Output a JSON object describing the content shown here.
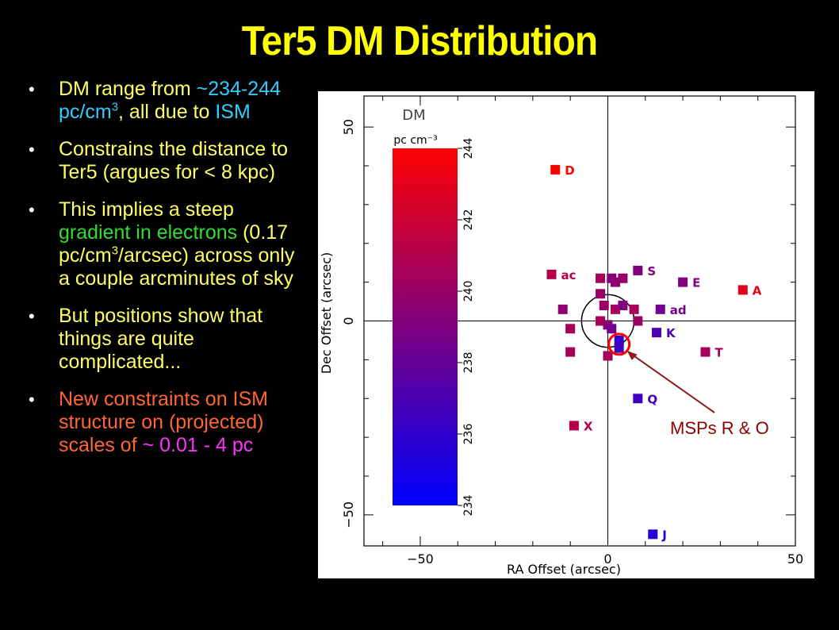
{
  "slide": {
    "title": "Ter5 DM Distribution",
    "bullets": [
      {
        "parts": [
          {
            "t": "DM range from "
          },
          {
            "t": "~234-244",
            "c": "cyan"
          },
          {
            "t": " pc/cm",
            "c": "cyan"
          },
          {
            "sup": "3",
            "c": "cyan"
          },
          {
            "t": ", all due to "
          },
          {
            "t": "ISM",
            "c": "cyan"
          }
        ]
      },
      {
        "parts": [
          {
            "t": "Constrains the distance to Ter5 (argues for < 8 kpc)"
          }
        ]
      },
      {
        "parts": [
          {
            "t": "This implies a steep "
          },
          {
            "t": "gradient in electrons",
            "c": "green"
          },
          {
            "t": " (0.17 pc/cm"
          },
          {
            "sup": "3"
          },
          {
            "t": "/arcsec) across only a couple arcminutes of sky"
          }
        ]
      },
      {
        "parts": [
          {
            "t": "But positions show that things are quite complicated..."
          }
        ]
      },
      {
        "parts": [
          {
            "t": "New constraints on ISM structure on (projected) scales of ",
            "c": "orange"
          },
          {
            "t": "~ 0.01 - 4 pc",
            "c": "magenta"
          }
        ]
      }
    ],
    "annotation": "MSPs R & O"
  },
  "chart_data": {
    "type": "scatter",
    "xlabel": "RA Offset (arcsec)",
    "ylabel": "Dec Offset (arcsec)",
    "xlim": [
      -65,
      50
    ],
    "ylim": [
      -58,
      58
    ],
    "xticks": [
      -50,
      0,
      50
    ],
    "yticks": [
      -50,
      0,
      50
    ],
    "colorbar": {
      "title": "DM",
      "unit": "pc cm⁻³",
      "range": [
        234,
        244
      ],
      "ticks": [
        234,
        236,
        238,
        240,
        242,
        244
      ],
      "low_color": "#0000ff",
      "high_color": "#ff0000"
    },
    "circle": {
      "x": 0,
      "y": 0,
      "r": 7
    },
    "highlight": {
      "x": 3,
      "y": -6,
      "label": "MSPs R & O"
    },
    "points": [
      {
        "label": "D",
        "x": -14,
        "y": 39,
        "dm": 244
      },
      {
        "label": "A",
        "x": 36,
        "y": 8,
        "dm": 243
      },
      {
        "label": "E",
        "x": 20,
        "y": 10,
        "dm": 239
      },
      {
        "label": "S",
        "x": 8,
        "y": 13,
        "dm": 239
      },
      {
        "label": "ac",
        "x": -15,
        "y": 12,
        "dm": 241
      },
      {
        "label": "ad",
        "x": 14,
        "y": 3,
        "dm": 238.5
      },
      {
        "label": "K",
        "x": 13,
        "y": -3,
        "dm": 237
      },
      {
        "label": "T",
        "x": 26,
        "y": -8,
        "dm": 240.5
      },
      {
        "label": "Q",
        "x": 8,
        "y": -20,
        "dm": 236.5
      },
      {
        "label": "X",
        "x": -9,
        "y": -27,
        "dm": 241
      },
      {
        "label": "J",
        "x": 12,
        "y": -55,
        "dm": 235.5
      },
      {
        "label": "",
        "x": -2,
        "y": 11,
        "dm": 240.5
      },
      {
        "label": "",
        "x": 1,
        "y": 11,
        "dm": 239
      },
      {
        "label": "",
        "x": 4,
        "y": 11,
        "dm": 240
      },
      {
        "label": "",
        "x": 2,
        "y": 10,
        "dm": 239.5
      },
      {
        "label": "",
        "x": -2,
        "y": 7,
        "dm": 240
      },
      {
        "label": "",
        "x": -12,
        "y": 3,
        "dm": 239.5
      },
      {
        "label": "",
        "x": -1,
        "y": 4,
        "dm": 240
      },
      {
        "label": "",
        "x": 2,
        "y": 3,
        "dm": 240.5
      },
      {
        "label": "",
        "x": 4,
        "y": 4,
        "dm": 239
      },
      {
        "label": "",
        "x": 7,
        "y": 3,
        "dm": 240.5
      },
      {
        "label": "",
        "x": 8,
        "y": 0,
        "dm": 240
      },
      {
        "label": "",
        "x": -2,
        "y": 0,
        "dm": 240.5
      },
      {
        "label": "",
        "x": 0,
        "y": -1,
        "dm": 239.5
      },
      {
        "label": "",
        "x": 1,
        "y": -2,
        "dm": 238.5
      },
      {
        "label": "",
        "x": -10,
        "y": -2,
        "dm": 240.5
      },
      {
        "label": "",
        "x": 3,
        "y": -5,
        "dm": 236
      },
      {
        "label": "",
        "x": 3,
        "y": -7,
        "dm": 236.5
      },
      {
        "label": "",
        "x": -10,
        "y": -8,
        "dm": 240.5
      },
      {
        "label": "",
        "x": 0,
        "y": -9,
        "dm": 240.5
      }
    ]
  }
}
